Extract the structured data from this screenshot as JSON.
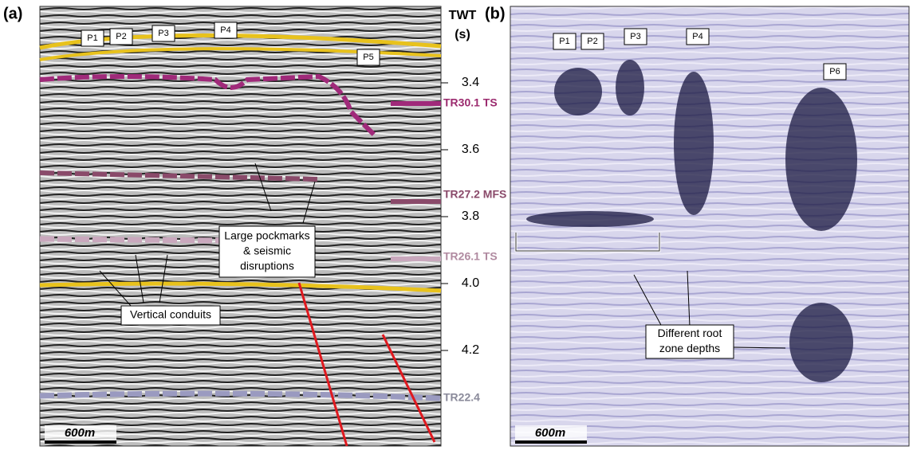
{
  "panels": [
    {
      "tag": "(a)",
      "pockmarks": [
        "P1",
        "P2",
        "P3",
        "P4",
        "P5"
      ],
      "annotations": [
        {
          "lines": [
            "Large pockmarks",
            "& seismic",
            "disruptions"
          ]
        },
        {
          "lines": [
            "Vertical conduits"
          ]
        }
      ],
      "scale": "600m"
    },
    {
      "tag": "(b)",
      "pockmarks": [
        "P1",
        "P2",
        "P3",
        "P4",
        "P6"
      ],
      "annotations": [
        {
          "lines": [
            "Different root",
            "zone depths"
          ]
        }
      ],
      "scale": "600m"
    }
  ],
  "twt": {
    "title": "TWT",
    "unit": "(s)",
    "ticks": [
      "3.4",
      "3.6",
      "3.8",
      "4.0",
      "4.2"
    ]
  },
  "horizons": [
    "TR30.1 TS",
    "TR27.2 MFS",
    "TR26.1 TS",
    "TR22.4"
  ]
}
